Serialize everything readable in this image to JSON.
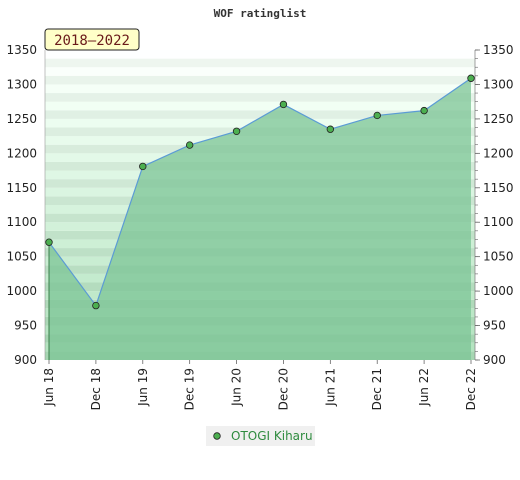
{
  "chart_data": {
    "type": "area",
    "title": "WOF ratinglist",
    "badge": "2018–2022",
    "x": [
      "Jun 18",
      "Dec 18",
      "Jun 19",
      "Dec 19",
      "Jun 20",
      "Dec 20",
      "Jun 21",
      "Dec 21",
      "Jun 22",
      "Dec 22"
    ],
    "series": [
      {
        "name": "OTOGI Kiharu",
        "values": [
          1071,
          979,
          1181,
          1212,
          1232,
          1271,
          1235,
          1255,
          1262,
          1309
        ]
      }
    ],
    "ylim": [
      900,
      1350
    ],
    "yticks": [
      900,
      950,
      1000,
      1050,
      1100,
      1150,
      1200,
      1250,
      1300,
      1350
    ],
    "xlabel": "",
    "ylabel": "",
    "legend_position": "bottom-center",
    "colors": {
      "line": "#5b9bd5",
      "marker": "#4caf50",
      "area": "#7cc495",
      "band_dark": "#a8d8b4",
      "band_light": "#f0f7f1"
    }
  }
}
